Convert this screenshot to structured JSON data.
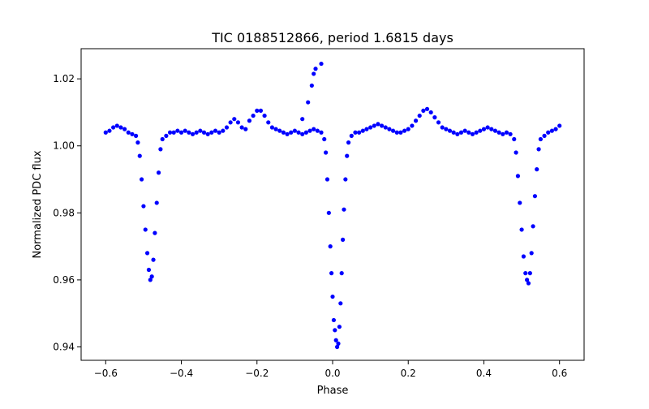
{
  "chart_data": {
    "type": "scatter",
    "title": "TIC 0188512866, period 1.6815 days",
    "xlabel": "Phase",
    "ylabel": "Normalized PDC flux",
    "xlim": [
      -0.665,
      0.665
    ],
    "ylim": [
      0.936,
      1.029
    ],
    "xticks": [
      -0.6,
      -0.4,
      -0.2,
      0.0,
      0.2,
      0.4,
      0.6
    ],
    "xtick_labels": [
      "−0.6",
      "−0.4",
      "−0.2",
      "0.0",
      "0.2",
      "0.4",
      "0.6"
    ],
    "yticks": [
      0.94,
      0.96,
      0.98,
      1.0,
      1.02
    ],
    "ytick_labels": [
      "0.94",
      "0.96",
      "0.98",
      "1.00",
      "1.02"
    ],
    "grid": false,
    "marker_color": "#0000ff",
    "series": [
      {
        "points": [
          [
            -0.6,
            1.004
          ],
          [
            -0.59,
            1.0045
          ],
          [
            -0.58,
            1.0055
          ],
          [
            -0.57,
            1.006
          ],
          [
            -0.56,
            1.0055
          ],
          [
            -0.55,
            1.005
          ],
          [
            -0.54,
            1.004
          ],
          [
            -0.53,
            1.0035
          ],
          [
            -0.52,
            1.003
          ],
          [
            -0.515,
            1.001
          ],
          [
            -0.51,
            0.997
          ],
          [
            -0.505,
            0.99
          ],
          [
            -0.5,
            0.982
          ],
          [
            -0.495,
            0.975
          ],
          [
            -0.49,
            0.968
          ],
          [
            -0.486,
            0.963
          ],
          [
            -0.482,
            0.96
          ],
          [
            -0.478,
            0.961
          ],
          [
            -0.474,
            0.966
          ],
          [
            -0.47,
            0.974
          ],
          [
            -0.465,
            0.983
          ],
          [
            -0.46,
            0.992
          ],
          [
            -0.455,
            0.999
          ],
          [
            -0.45,
            1.002
          ],
          [
            -0.44,
            1.003
          ],
          [
            -0.43,
            1.004
          ],
          [
            -0.42,
            1.004
          ],
          [
            -0.41,
            1.0045
          ],
          [
            -0.4,
            1.004
          ],
          [
            -0.39,
            1.0045
          ],
          [
            -0.38,
            1.004
          ],
          [
            -0.37,
            1.0035
          ],
          [
            -0.36,
            1.004
          ],
          [
            -0.35,
            1.0045
          ],
          [
            -0.34,
            1.004
          ],
          [
            -0.33,
            1.0035
          ],
          [
            -0.32,
            1.004
          ],
          [
            -0.31,
            1.0045
          ],
          [
            -0.3,
            1.004
          ],
          [
            -0.29,
            1.0045
          ],
          [
            -0.28,
            1.0055
          ],
          [
            -0.27,
            1.007
          ],
          [
            -0.26,
            1.008
          ],
          [
            -0.25,
            1.007
          ],
          [
            -0.24,
            1.0055
          ],
          [
            -0.23,
            1.005
          ],
          [
            -0.22,
            1.0075
          ],
          [
            -0.21,
            1.009
          ],
          [
            -0.2,
            1.0105
          ],
          [
            -0.19,
            1.0105
          ],
          [
            -0.18,
            1.009
          ],
          [
            -0.17,
            1.007
          ],
          [
            -0.16,
            1.0055
          ],
          [
            -0.15,
            1.005
          ],
          [
            -0.14,
            1.0045
          ],
          [
            -0.13,
            1.004
          ],
          [
            -0.12,
            1.0035
          ],
          [
            -0.11,
            1.004
          ],
          [
            -0.1,
            1.0045
          ],
          [
            -0.09,
            1.004
          ],
          [
            -0.08,
            1.0035
          ],
          [
            -0.07,
            1.004
          ],
          [
            -0.06,
            1.0045
          ],
          [
            -0.05,
            1.005
          ],
          [
            -0.04,
            1.0045
          ],
          [
            -0.03,
            1.004
          ],
          [
            -0.08,
            1.008
          ],
          [
            -0.065,
            1.013
          ],
          [
            -0.055,
            1.018
          ],
          [
            -0.05,
            1.0215
          ],
          [
            -0.045,
            1.023
          ],
          [
            -0.03,
            1.0245
          ],
          [
            -0.022,
            1.002
          ],
          [
            -0.018,
            0.998
          ],
          [
            -0.014,
            0.99
          ],
          [
            -0.01,
            0.98
          ],
          [
            -0.006,
            0.97
          ],
          [
            -0.003,
            0.962
          ],
          [
            0.0,
            0.955
          ],
          [
            0.003,
            0.948
          ],
          [
            0.006,
            0.945
          ],
          [
            0.009,
            0.942
          ],
          [
            0.012,
            0.94
          ],
          [
            0.015,
            0.941
          ],
          [
            0.018,
            0.946
          ],
          [
            0.021,
            0.953
          ],
          [
            0.024,
            0.962
          ],
          [
            0.027,
            0.972
          ],
          [
            0.03,
            0.981
          ],
          [
            0.034,
            0.99
          ],
          [
            0.038,
            0.997
          ],
          [
            0.042,
            1.001
          ],
          [
            0.05,
            1.003
          ],
          [
            0.06,
            1.004
          ],
          [
            0.07,
            1.004
          ],
          [
            0.08,
            1.0045
          ],
          [
            0.09,
            1.005
          ],
          [
            0.1,
            1.0055
          ],
          [
            0.11,
            1.006
          ],
          [
            0.12,
            1.0065
          ],
          [
            0.13,
            1.006
          ],
          [
            0.14,
            1.0055
          ],
          [
            0.15,
            1.005
          ],
          [
            0.16,
            1.0045
          ],
          [
            0.17,
            1.004
          ],
          [
            0.18,
            1.004
          ],
          [
            0.19,
            1.0045
          ],
          [
            0.2,
            1.005
          ],
          [
            0.21,
            1.006
          ],
          [
            0.22,
            1.0075
          ],
          [
            0.23,
            1.009
          ],
          [
            0.24,
            1.0105
          ],
          [
            0.25,
            1.011
          ],
          [
            0.26,
            1.01
          ],
          [
            0.27,
            1.0085
          ],
          [
            0.28,
            1.007
          ],
          [
            0.29,
            1.0055
          ],
          [
            0.3,
            1.005
          ],
          [
            0.31,
            1.0045
          ],
          [
            0.32,
            1.004
          ],
          [
            0.33,
            1.0035
          ],
          [
            0.34,
            1.004
          ],
          [
            0.35,
            1.0045
          ],
          [
            0.36,
            1.004
          ],
          [
            0.37,
            1.0035
          ],
          [
            0.38,
            1.004
          ],
          [
            0.39,
            1.0045
          ],
          [
            0.4,
            1.005
          ],
          [
            0.41,
            1.0055
          ],
          [
            0.42,
            1.005
          ],
          [
            0.43,
            1.0045
          ],
          [
            0.44,
            1.004
          ],
          [
            0.45,
            1.0035
          ],
          [
            0.46,
            1.004
          ],
          [
            0.47,
            1.0035
          ],
          [
            0.48,
            1.002
          ],
          [
            0.485,
            0.998
          ],
          [
            0.49,
            0.991
          ],
          [
            0.495,
            0.983
          ],
          [
            0.5,
            0.975
          ],
          [
            0.505,
            0.967
          ],
          [
            0.51,
            0.962
          ],
          [
            0.514,
            0.96
          ],
          [
            0.518,
            0.959
          ],
          [
            0.522,
            0.962
          ],
          [
            0.526,
            0.968
          ],
          [
            0.53,
            0.976
          ],
          [
            0.535,
            0.985
          ],
          [
            0.54,
            0.993
          ],
          [
            0.545,
            0.999
          ],
          [
            0.55,
            1.002
          ],
          [
            0.56,
            1.003
          ],
          [
            0.57,
            1.004
          ],
          [
            0.58,
            1.0045
          ],
          [
            0.59,
            1.005
          ],
          [
            0.6,
            1.006
          ]
        ]
      }
    ]
  }
}
